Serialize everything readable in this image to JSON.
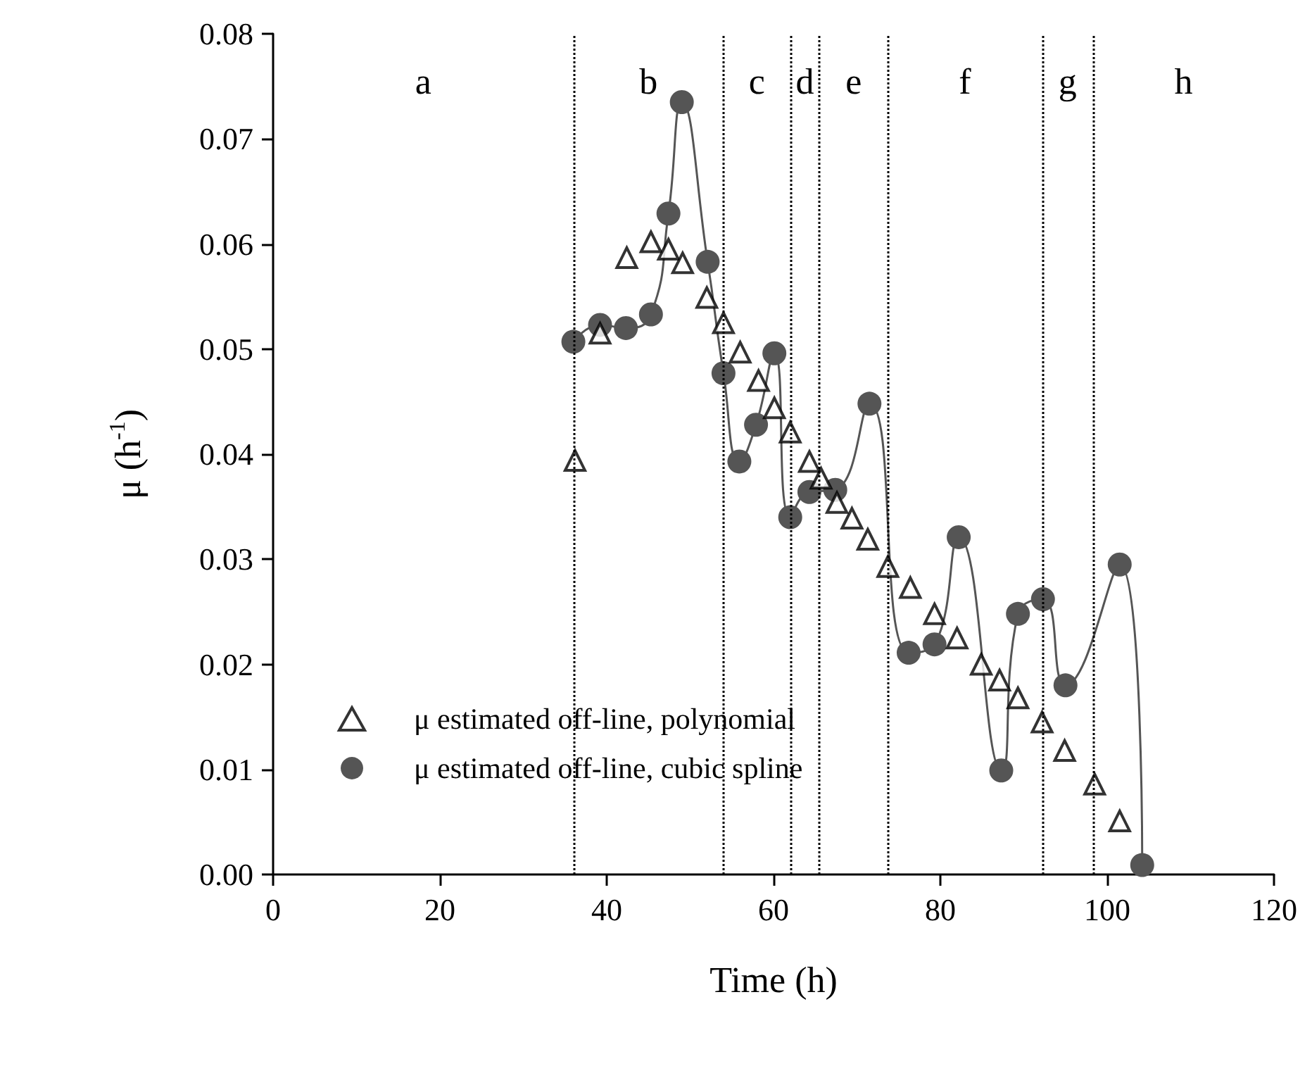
{
  "chart_data": {
    "type": "line",
    "xlabel": "Time (h)",
    "ylabel": "μ (h$^{-1}$)",
    "xlim": [
      0,
      120
    ],
    "xticks": [
      0,
      20,
      40,
      60,
      80,
      100,
      120
    ],
    "ylim": [
      0,
      0.08
    ],
    "yticks": [
      {
        "value": 0,
        "label": "0.00"
      },
      {
        "value": 0.01,
        "label": "0.01"
      },
      {
        "value": 0.02,
        "label": "0.02"
      },
      {
        "value": 0.03,
        "label": "0.03"
      },
      {
        "value": 0.04,
        "label": "0.04"
      },
      {
        "value": 0.05,
        "label": "0.05"
      },
      {
        "value": 0.06,
        "label": "0.06"
      },
      {
        "value": 0.07,
        "label": "0.07"
      },
      {
        "value": 0.08,
        "label": "0.08"
      }
    ],
    "grid": false,
    "legend": "bottom left",
    "series": [
      {
        "name": "μ estimated off-line, polynomial",
        "type": "scatter",
        "marker": "triangle",
        "color": "#000000",
        "x": [
          36.2,
          39.2,
          42.4,
          45.3,
          47.4,
          49.1,
          52.0,
          54.0,
          56.0,
          58.2,
          60.1,
          62.0,
          64.3,
          65.7,
          67.6,
          69.4,
          71.3,
          73.7,
          76.4,
          79.3,
          82.0,
          84.9,
          87.1,
          89.3,
          92.2,
          94.9,
          98.5,
          101.5
        ],
        "values": [
          0.0394,
          0.0515,
          0.0587,
          0.0602,
          0.0595,
          0.0582,
          0.0549,
          0.0525,
          0.0497,
          0.047,
          0.0444,
          0.0421,
          0.0393,
          0.0377,
          0.0354,
          0.0339,
          0.0319,
          0.0293,
          0.0273,
          0.0248,
          0.0225,
          0.02,
          0.0185,
          0.0168,
          0.0145,
          0.0118,
          0.0086,
          0.0051
        ]
      },
      {
        "name": "μ estimated off-line, cubic spline",
        "marker": "circle",
        "color": "#555555",
        "x": [
          36.0,
          39.2,
          42.3,
          45.3,
          47.4,
          49.0,
          52.1,
          54.0,
          55.9,
          57.9,
          60.1,
          62.0,
          64.3,
          67.4,
          71.5,
          76.2,
          79.3,
          82.2,
          87.3,
          89.3,
          92.3,
          95.0,
          101.5,
          104.2
        ],
        "values": [
          0.0507,
          0.0523,
          0.052,
          0.0533,
          0.0629,
          0.0735,
          0.0583,
          0.0477,
          0.0393,
          0.0428,
          0.0496,
          0.034,
          0.0364,
          0.0366,
          0.0448,
          0.0211,
          0.0219,
          0.0321,
          0.0099,
          0.0248,
          0.0262,
          0.018,
          0.0295,
          0.0009
        ]
      }
    ],
    "ref_lines": [
      {
        "axis": "x",
        "value": 36.0,
        "line_style": "dotted",
        "color": "#000000"
      },
      {
        "axis": "x",
        "value": 54.0,
        "line_style": "dotted",
        "color": "#000000"
      },
      {
        "axis": "x",
        "value": 62.0,
        "line_style": "dotted",
        "color": "#000000"
      },
      {
        "axis": "x",
        "value": 65.5,
        "line_style": "dotted",
        "color": "#000000"
      },
      {
        "axis": "x",
        "value": 73.7,
        "line_style": "dotted",
        "color": "#000000"
      },
      {
        "axis": "x",
        "value": 92.2,
        "line_style": "dotted",
        "color": "#000000"
      },
      {
        "axis": "x",
        "value": 98.3,
        "line_style": "dotted",
        "color": "#000000"
      }
    ],
    "annotations": [
      "a",
      "b",
      "c",
      "d",
      "e",
      "f",
      "g",
      "h"
    ]
  }
}
